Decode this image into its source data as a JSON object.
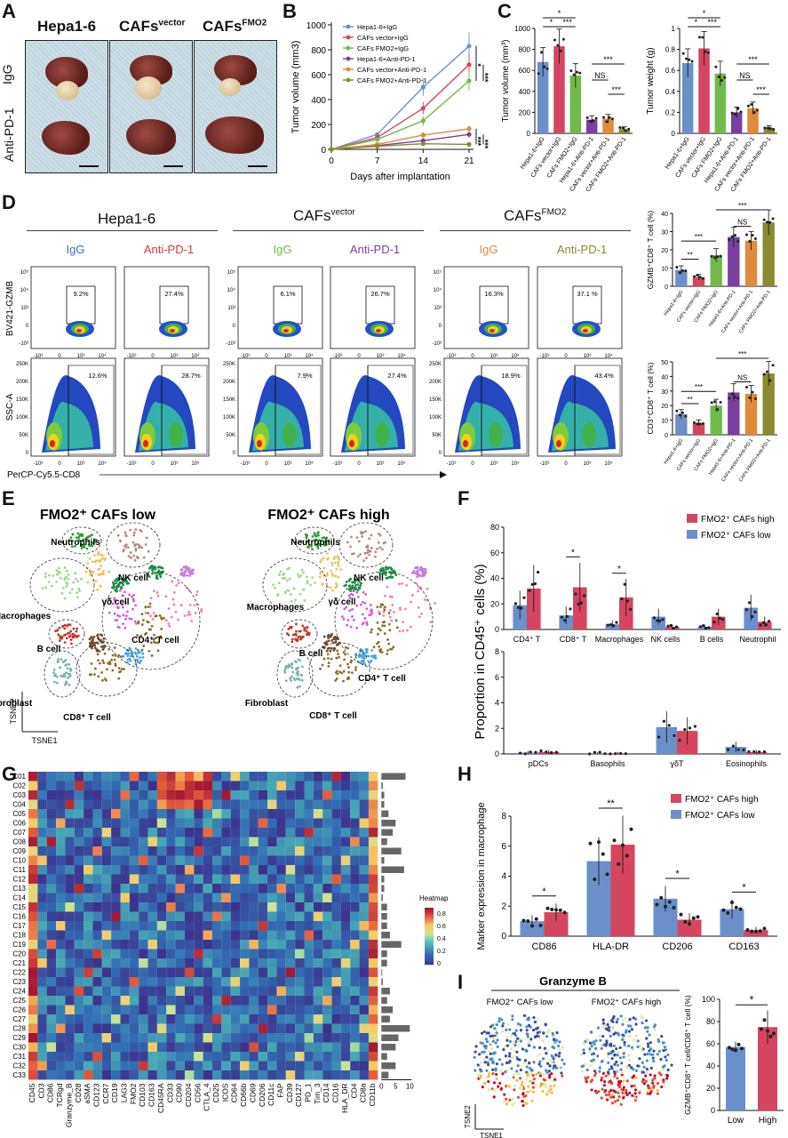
{
  "panels": {
    "A": {
      "letter": "A",
      "col_labels": [
        "Hepa1-6",
        "CAFs",
        "CAFs"
      ],
      "col_sups": [
        "",
        "vector",
        "FMO2"
      ],
      "row_labels": [
        "IgG",
        "Anti-PD-1"
      ]
    },
    "B": {
      "letter": "B",
      "chart_data": {
        "type": "line",
        "xlabel": "Days after implantation",
        "ylabel": "Tumor volume (mm3)",
        "x": [
          0,
          7,
          14,
          21
        ],
        "ylim": [
          0,
          1000
        ],
        "yticks": [
          0,
          200,
          400,
          600,
          800,
          1000
        ],
        "series": [
          {
            "name": "Hepa1-6+IgG",
            "color": "#6b8fc9",
            "values": [
              0,
              120,
              500,
              830
            ]
          },
          {
            "name": "CAFs vector+IgG",
            "color": "#d6455f",
            "values": [
              0,
              95,
              330,
              680
            ]
          },
          {
            "name": "CAFs FMO2+IgG",
            "color": "#6fba4a",
            "values": [
              0,
              80,
              230,
              550
            ]
          },
          {
            "name": "Hepa1-6+Anti-PD-1",
            "color": "#7a3fa0",
            "values": [
              0,
              30,
              70,
              120
            ]
          },
          {
            "name": "CAFs vector+Anti-PD-1",
            "color": "#e08a3a",
            "values": [
              0,
              40,
              115,
              165
            ]
          },
          {
            "name": "CAFs FMO2+Anti-PD-1",
            "color": "#8a8a2e",
            "values": [
              0,
              25,
              45,
              40
            ]
          }
        ],
        "sig": [
          "*",
          "***",
          "***",
          "***"
        ]
      }
    },
    "C": {
      "letter": "C",
      "charts": [
        {
          "type": "bar",
          "ylabel": "Tumor volume (mm³)",
          "ylim": [
            0,
            1000
          ],
          "yticks": [
            0,
            200,
            400,
            600,
            800,
            1000
          ],
          "categories": [
            "Hepa1-6+IgG",
            "CAFs vector+IgG",
            "CAFs FMO2+IgG",
            "Hepa1-6+Anti-PD-1",
            "CAFs vector+Anti-PD-1",
            "CAFs FMO2+Anti-PD-1"
          ],
          "values": [
            680,
            830,
            550,
            130,
            140,
            40
          ],
          "colors": [
            "#6b8fc9",
            "#d6455f",
            "#6fba4a",
            "#7a3fa0",
            "#e08a3a",
            "#8a8a2e"
          ],
          "sig": [
            "*",
            "*",
            "***",
            "***",
            "NS",
            "***"
          ]
        },
        {
          "type": "bar",
          "ylabel": "Tumor weight (g)",
          "ylim": [
            0,
            1.0
          ],
          "yticks": [
            0.0,
            0.2,
            0.4,
            0.6,
            0.8,
            1.0
          ],
          "categories": [
            "Hepa1-6+IgG",
            "CAFs vector+IgG",
            "CAFs FMO2+IgG",
            "Hepa1-6+Anti-PD-1",
            "CAFs vector+Anti-PD-1",
            "CAFs FMO2+Anti-PD-1"
          ],
          "values": [
            0.67,
            0.81,
            0.57,
            0.2,
            0.24,
            0.05
          ],
          "colors": [
            "#6b8fc9",
            "#d6455f",
            "#6fba4a",
            "#7a3fa0",
            "#e08a3a",
            "#8a8a2e"
          ],
          "sig": [
            "*",
            "*",
            "***",
            "***",
            "NS",
            "***"
          ]
        }
      ]
    },
    "D": {
      "letter": "D",
      "groups": [
        "Hepa1-6",
        "CAFs",
        "CAFs"
      ],
      "group_sups": [
        "",
        "vector",
        "FMO2"
      ],
      "conds": [
        "IgG",
        "Anti-PD-1",
        "IgG",
        "Anti-PD-1",
        "IgG",
        "Anti-PD-1"
      ],
      "cond_colors": [
        "#3a6fb8",
        "#d23b3b",
        "#6fba4a",
        "#7a3fa0",
        "#e08a3a",
        "#8a8a2e"
      ],
      "gzmb_pct": [
        "9.2%",
        "27.4%",
        "6.1%",
        "26.7%",
        "16.3%",
        "37.1 %"
      ],
      "cd8_pct": [
        "12.6%",
        "28.7%",
        "7.9%",
        "27.4%",
        "18.9%",
        "43.4%"
      ],
      "ylabel_top": "BV421-GZMB",
      "ylabel_bottom": "SSC-A",
      "xlabel": "PerCP-Cy5.5-CD8",
      "top_ticks": [
        "10⁵",
        "10⁴",
        "10³",
        "0",
        "-10³"
      ],
      "bottom_ticks": [
        "250K",
        "200K",
        "150K",
        "100K",
        "50K",
        "0"
      ],
      "x_ticks": [
        "-10³",
        "0",
        "10³",
        "10⁴"
      ],
      "bar_charts": [
        {
          "type": "bar",
          "ylabel": "GZMB⁺CD8⁺ T cell (%)",
          "ylim": [
            0,
            40
          ],
          "yticks": [
            0,
            10,
            20,
            30,
            40
          ],
          "categories": [
            "Hepa1-6+IgG",
            "CAFs vector+IgG",
            "CAFs FMO2+IgG",
            "Hepa1-6+Anti-PD-1",
            "CAFs vector+Anti-PD-1",
            "CAFs FMO2+Anti-PD-1"
          ],
          "values": [
            9,
            5,
            17,
            27,
            25,
            35
          ],
          "colors": [
            "#6b8fc9",
            "#d6455f",
            "#6fba4a",
            "#7a3fa0",
            "#e08a3a",
            "#8a8a2e"
          ],
          "sig": [
            "**",
            "***",
            "***",
            "NS"
          ]
        },
        {
          "type": "bar",
          "ylabel": "CD3⁺CD8⁺ T cell (%)",
          "ylim": [
            0,
            50
          ],
          "yticks": [
            0,
            10,
            20,
            30,
            40,
            50
          ],
          "categories": [
            "Hepa1-6+IgG",
            "CAFs vector+IgG",
            "CAFs FMO2+IgG",
            "Hepa1-6+Anti-PD-1",
            "CAFs vector+Anti-PD-1",
            "CAFs FMO2+Anti-PD-1"
          ],
          "values": [
            14,
            8,
            20,
            29,
            28,
            42
          ],
          "colors": [
            "#6b8fc9",
            "#d6455f",
            "#6fba4a",
            "#7a3fa0",
            "#e08a3a",
            "#8a8a2e"
          ],
          "sig": [
            "**",
            "***",
            "***",
            "NS"
          ]
        }
      ]
    },
    "E": {
      "letter": "E",
      "titles": [
        "FMO2⁺ CAFs low",
        "FMO2⁺ CAFs high"
      ],
      "labels_left": [
        "Neutrophils",
        "NK cell",
        "γδ cell",
        "Macrophages",
        "CD4⁺ T cell",
        "B cell",
        "Fibroblast",
        "CD8⁺ T cell"
      ],
      "labels_right": [
        "Neutrophils",
        "NK cell",
        "Macrophages",
        "γδ cell",
        "B cell",
        "CD4⁺ T cell",
        "Fibroblast",
        "CD8⁺ T cell"
      ],
      "axis_y": "TSNE2",
      "axis_x": "TSNE1"
    },
    "F": {
      "letter": "F",
      "ylabel": "Proportion in CD45⁺ cells (%)",
      "legend": [
        {
          "name": "FMO2⁺ CAFs high",
          "color": "#d6455f"
        },
        {
          "name": "FMO2⁺ CAFs low",
          "color": "#6b8fc9"
        }
      ],
      "chart_data": [
        {
          "type": "bar",
          "ylim": [
            0,
            80
          ],
          "yticks": [
            0,
            20,
            40,
            60,
            80
          ],
          "categories": [
            "CD4⁺ T",
            "CD8⁺ T",
            "Macrophages",
            "NK cells",
            "B cells",
            "Neutrophil"
          ],
          "series": [
            {
              "name": "FMO2⁺ CAFs low",
              "values": [
                19,
                11,
                4,
                10,
                2,
                17
              ]
            },
            {
              "name": "FMO2⁺ CAFs high",
              "values": [
                32,
                33,
                25,
                2,
                10,
                6
              ]
            }
          ],
          "sig": [
            "",
            "*",
            "*",
            "",
            "",
            ""
          ]
        },
        {
          "type": "bar",
          "ylim": [
            0,
            8
          ],
          "yticks": [
            0,
            2,
            4,
            6,
            8
          ],
          "categories": [
            "pDCs",
            "Basophils",
            "γδT",
            "Eosinophils"
          ],
          "series": [
            {
              "name": "FMO2⁺ CAFs low",
              "values": [
                0.1,
                0.05,
                2.1,
                0.55
              ]
            },
            {
              "name": "FMO2⁺ CAFs high",
              "values": [
                0.15,
                0.05,
                1.8,
                0.15
              ]
            }
          ]
        }
      ]
    },
    "G": {
      "letter": "G",
      "rows": [
        "C01",
        "C02",
        "C03",
        "C04",
        "C05",
        "C06",
        "C07",
        "C08",
        "C09",
        "C10",
        "C11",
        "C12",
        "C13",
        "C14",
        "C15",
        "C16",
        "C17",
        "C18",
        "C19",
        "C20",
        "C21",
        "C22",
        "C23",
        "C24",
        "C25",
        "C26",
        "C27",
        "C28",
        "C29",
        "C30",
        "C31",
        "C32",
        "C33"
      ],
      "cols": [
        "CD45",
        "CD3",
        "CD86",
        "TCRgd",
        "Granzyme_B",
        "CD28",
        "aSMA",
        "CD123",
        "CCR7",
        "CD19",
        "LAG3",
        "FMO2",
        "CD103",
        "CD163",
        "CD45RA",
        "CD33",
        "CD90",
        "CD204",
        "CD56",
        "CTLA_4",
        "CD25",
        "ICOS",
        "CD64",
        "CD66b",
        "CD69",
        "CD206",
        "CD11c",
        "FAP",
        "CD39",
        "CD127",
        "PD_1",
        "Tim_3",
        "CD14",
        "CD16",
        "HLA_DR",
        "CD4",
        "CD8a",
        "CD11b"
      ],
      "legend_title": "Heatmap",
      "legend_ticks": [
        "0.8",
        "0.6",
        "0.4",
        "0.2",
        "0"
      ],
      "bar_ticks": [
        "0",
        "5",
        "10"
      ],
      "bar_values": [
        8.5,
        0.5,
        1,
        1,
        2.5,
        5,
        4,
        2,
        7,
        1,
        8,
        1,
        1,
        0.5,
        2,
        2,
        2,
        3,
        7,
        2,
        2,
        0.3,
        0.5,
        3,
        2,
        4,
        3,
        10,
        6,
        5,
        2,
        5,
        2.5
      ]
    },
    "H": {
      "letter": "H",
      "ylabel": "Marker expression in macrophage",
      "legend": [
        {
          "name": "FMO2⁺ CAFs high",
          "color": "#d6455f"
        },
        {
          "name": "FMO2⁺ CAFs low",
          "color": "#6b8fc9"
        }
      ],
      "chart_data": {
        "type": "bar",
        "ylim": [
          0,
          8
        ],
        "yticks": [
          0,
          2,
          4,
          6,
          8
        ],
        "categories": [
          "CD86",
          "HLA-DR",
          "CD206",
          "CD163"
        ],
        "series": [
          {
            "name": "FMO2⁺ CAFs low",
            "values": [
              1.0,
              5.0,
              2.5,
              1.8
            ]
          },
          {
            "name": "FMO2⁺ CAFs high",
            "values": [
              1.6,
              6.1,
              1.1,
              0.4
            ]
          }
        ],
        "sig": [
          "*",
          "**",
          "*",
          "*"
        ]
      }
    },
    "I": {
      "letter": "I",
      "title": "Granzyme B",
      "maps": [
        "FMO2⁺ CAFs low",
        "FMO2⁺ CAFs high"
      ],
      "axis_y": "TSNE2",
      "axis_x": "TSNE1",
      "chart_data": {
        "type": "bar",
        "ylabel": "GZMB⁺CD8⁺ T cell/CD8⁺ T cell (%)",
        "ylim": [
          0,
          100
        ],
        "yticks": [
          0,
          20,
          40,
          60,
          80,
          100
        ],
        "categories": [
          "Low",
          "High"
        ],
        "values": [
          57,
          75
        ],
        "colors": [
          "#6b8fc9",
          "#d6455f"
        ],
        "sig": [
          "*"
        ]
      }
    }
  }
}
